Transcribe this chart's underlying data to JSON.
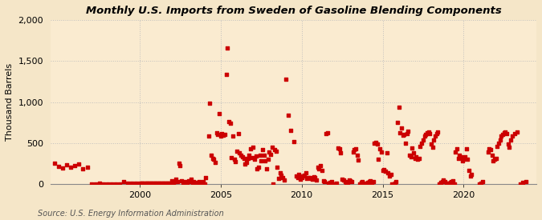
{
  "title": "Monthly U.S. Imports from Sweden of Gasoline Blending Components",
  "ylabel": "Thousand Barrels",
  "source": "Source: U.S. Energy Information Administration",
  "background_color": "#f5e6c8",
  "plot_bg_color": "#faebd0",
  "marker_color": "#cc0000",
  "grid_color": "#bbbbbb",
  "ylim": [
    0,
    2000
  ],
  "yticks": [
    0,
    500,
    1000,
    1500,
    2000
  ],
  "xlim_start": 1994.5,
  "xlim_end": 2024.5,
  "xticks": [
    2000,
    2005,
    2010,
    2015,
    2020
  ],
  "data": [
    [
      1994.75,
      250
    ],
    [
      1995.0,
      210
    ],
    [
      1995.25,
      190
    ],
    [
      1995.5,
      230
    ],
    [
      1995.75,
      200
    ],
    [
      1996.0,
      220
    ],
    [
      1996.25,
      240
    ],
    [
      1996.5,
      180
    ],
    [
      1996.75,
      200
    ],
    [
      1997.0,
      0
    ],
    [
      1997.25,
      0
    ],
    [
      1997.5,
      5
    ],
    [
      1997.75,
      0
    ],
    [
      1998.0,
      0
    ],
    [
      1998.25,
      0
    ],
    [
      1998.5,
      0
    ],
    [
      1998.75,
      0
    ],
    [
      1999.0,
      30
    ],
    [
      1999.25,
      5
    ],
    [
      1999.5,
      10
    ],
    [
      1999.75,
      5
    ],
    [
      2000.0,
      10
    ],
    [
      2000.08,
      10
    ],
    [
      2000.17,
      10
    ],
    [
      2000.25,
      10
    ],
    [
      2000.33,
      10
    ],
    [
      2000.42,
      10
    ],
    [
      2000.5,
      10
    ],
    [
      2000.58,
      10
    ],
    [
      2000.67,
      10
    ],
    [
      2000.75,
      10
    ],
    [
      2000.83,
      10
    ],
    [
      2000.92,
      10
    ],
    [
      2001.0,
      10
    ],
    [
      2001.08,
      10
    ],
    [
      2001.17,
      10
    ],
    [
      2001.25,
      10
    ],
    [
      2001.33,
      10
    ],
    [
      2001.42,
      10
    ],
    [
      2001.5,
      10
    ],
    [
      2001.58,
      10
    ],
    [
      2001.67,
      10
    ],
    [
      2001.75,
      10
    ],
    [
      2001.83,
      10
    ],
    [
      2001.92,
      10
    ],
    [
      2002.0,
      40
    ],
    [
      2002.08,
      20
    ],
    [
      2002.17,
      30
    ],
    [
      2002.25,
      60
    ],
    [
      2002.33,
      30
    ],
    [
      2002.42,
      250
    ],
    [
      2002.5,
      220
    ],
    [
      2002.58,
      40
    ],
    [
      2002.67,
      20
    ],
    [
      2002.75,
      30
    ],
    [
      2002.83,
      10
    ],
    [
      2002.92,
      20
    ],
    [
      2003.0,
      40
    ],
    [
      2003.08,
      30
    ],
    [
      2003.17,
      60
    ],
    [
      2003.25,
      20
    ],
    [
      2003.33,
      30
    ],
    [
      2003.42,
      10
    ],
    [
      2003.5,
      20
    ],
    [
      2003.58,
      0
    ],
    [
      2003.67,
      30
    ],
    [
      2003.75,
      0
    ],
    [
      2003.83,
      10
    ],
    [
      2003.92,
      30
    ],
    [
      2004.0,
      0
    ],
    [
      2004.08,
      80
    ],
    [
      2004.25,
      580
    ],
    [
      2004.33,
      990
    ],
    [
      2004.42,
      350
    ],
    [
      2004.5,
      310
    ],
    [
      2004.58,
      300
    ],
    [
      2004.67,
      260
    ],
    [
      2004.75,
      620
    ],
    [
      2004.83,
      600
    ],
    [
      2004.92,
      860
    ],
    [
      2005.0,
      580
    ],
    [
      2005.08,
      610
    ],
    [
      2005.17,
      590
    ],
    [
      2005.25,
      600
    ],
    [
      2005.33,
      1340
    ],
    [
      2005.42,
      1660
    ],
    [
      2005.5,
      760
    ],
    [
      2005.58,
      740
    ],
    [
      2005.67,
      320
    ],
    [
      2005.75,
      580
    ],
    [
      2005.83,
      300
    ],
    [
      2005.92,
      270
    ],
    [
      2006.0,
      400
    ],
    [
      2006.08,
      610
    ],
    [
      2006.17,
      380
    ],
    [
      2006.25,
      350
    ],
    [
      2006.33,
      330
    ],
    [
      2006.42,
      310
    ],
    [
      2006.5,
      240
    ],
    [
      2006.58,
      260
    ],
    [
      2006.67,
      310
    ],
    [
      2006.75,
      350
    ],
    [
      2006.83,
      430
    ],
    [
      2006.92,
      320
    ],
    [
      2007.0,
      450
    ],
    [
      2007.08,
      300
    ],
    [
      2007.17,
      340
    ],
    [
      2007.25,
      180
    ],
    [
      2007.33,
      200
    ],
    [
      2007.42,
      350
    ],
    [
      2007.5,
      280
    ],
    [
      2007.58,
      420
    ],
    [
      2007.67,
      350
    ],
    [
      2007.75,
      280
    ],
    [
      2007.83,
      180
    ],
    [
      2007.92,
      300
    ],
    [
      2008.0,
      390
    ],
    [
      2008.08,
      360
    ],
    [
      2008.17,
      450
    ],
    [
      2008.25,
      0
    ],
    [
      2008.33,
      420
    ],
    [
      2008.42,
      400
    ],
    [
      2008.5,
      200
    ],
    [
      2008.58,
      70
    ],
    [
      2008.67,
      130
    ],
    [
      2008.75,
      110
    ],
    [
      2008.83,
      80
    ],
    [
      2008.92,
      50
    ],
    [
      2009.0,
      1280
    ],
    [
      2009.17,
      840
    ],
    [
      2009.33,
      650
    ],
    [
      2009.5,
      520
    ],
    [
      2009.67,
      100
    ],
    [
      2009.75,
      80
    ],
    [
      2009.83,
      120
    ],
    [
      2009.92,
      60
    ],
    [
      2010.0,
      80
    ],
    [
      2010.08,
      100
    ],
    [
      2010.17,
      110
    ],
    [
      2010.25,
      130
    ],
    [
      2010.33,
      70
    ],
    [
      2010.42,
      80
    ],
    [
      2010.5,
      80
    ],
    [
      2010.58,
      70
    ],
    [
      2010.67,
      60
    ],
    [
      2010.75,
      90
    ],
    [
      2010.83,
      80
    ],
    [
      2010.92,
      50
    ],
    [
      2011.0,
      200
    ],
    [
      2011.08,
      180
    ],
    [
      2011.17,
      220
    ],
    [
      2011.25,
      160
    ],
    [
      2011.33,
      40
    ],
    [
      2011.42,
      30
    ],
    [
      2011.5,
      610
    ],
    [
      2011.58,
      620
    ],
    [
      2011.67,
      10
    ],
    [
      2011.75,
      20
    ],
    [
      2011.83,
      30
    ],
    [
      2011.92,
      0
    ],
    [
      2012.0,
      0
    ],
    [
      2012.08,
      0
    ],
    [
      2012.17,
      10
    ],
    [
      2012.25,
      440
    ],
    [
      2012.33,
      430
    ],
    [
      2012.42,
      380
    ],
    [
      2012.5,
      60
    ],
    [
      2012.58,
      50
    ],
    [
      2012.67,
      30
    ],
    [
      2012.75,
      20
    ],
    [
      2012.83,
      10
    ],
    [
      2012.92,
      50
    ],
    [
      2013.0,
      40
    ],
    [
      2013.08,
      30
    ],
    [
      2013.17,
      390
    ],
    [
      2013.25,
      420
    ],
    [
      2013.33,
      430
    ],
    [
      2013.42,
      350
    ],
    [
      2013.5,
      290
    ],
    [
      2013.58,
      0
    ],
    [
      2013.67,
      20
    ],
    [
      2013.75,
      30
    ],
    [
      2013.83,
      10
    ],
    [
      2013.92,
      0
    ],
    [
      2014.0,
      0
    ],
    [
      2014.08,
      20
    ],
    [
      2014.17,
      30
    ],
    [
      2014.25,
      40
    ],
    [
      2014.33,
      0
    ],
    [
      2014.42,
      30
    ],
    [
      2014.5,
      500
    ],
    [
      2014.58,
      510
    ],
    [
      2014.67,
      490
    ],
    [
      2014.75,
      300
    ],
    [
      2014.83,
      430
    ],
    [
      2014.92,
      390
    ],
    [
      2015.0,
      160
    ],
    [
      2015.08,
      170
    ],
    [
      2015.17,
      150
    ],
    [
      2015.25,
      380
    ],
    [
      2015.33,
      130
    ],
    [
      2015.42,
      100
    ],
    [
      2015.5,
      120
    ],
    [
      2015.58,
      0
    ],
    [
      2015.67,
      0
    ],
    [
      2015.75,
      10
    ],
    [
      2015.83,
      30
    ],
    [
      2015.92,
      750
    ],
    [
      2016.0,
      940
    ],
    [
      2016.08,
      620
    ],
    [
      2016.17,
      680
    ],
    [
      2016.25,
      590
    ],
    [
      2016.33,
      600
    ],
    [
      2016.42,
      500
    ],
    [
      2016.5,
      610
    ],
    [
      2016.58,
      640
    ],
    [
      2016.67,
      350
    ],
    [
      2016.75,
      330
    ],
    [
      2016.83,
      440
    ],
    [
      2016.92,
      380
    ],
    [
      2017.0,
      310
    ],
    [
      2017.08,
      330
    ],
    [
      2017.17,
      300
    ],
    [
      2017.25,
      310
    ],
    [
      2017.33,
      460
    ],
    [
      2017.42,
      500
    ],
    [
      2017.5,
      540
    ],
    [
      2017.58,
      580
    ],
    [
      2017.67,
      600
    ],
    [
      2017.75,
      620
    ],
    [
      2017.83,
      630
    ],
    [
      2017.92,
      610
    ],
    [
      2018.0,
      490
    ],
    [
      2018.08,
      450
    ],
    [
      2018.17,
      540
    ],
    [
      2018.25,
      580
    ],
    [
      2018.33,
      610
    ],
    [
      2018.42,
      630
    ],
    [
      2018.5,
      0
    ],
    [
      2018.58,
      20
    ],
    [
      2018.67,
      30
    ],
    [
      2018.75,
      50
    ],
    [
      2018.83,
      30
    ],
    [
      2018.92,
      10
    ],
    [
      2019.0,
      0
    ],
    [
      2019.08,
      10
    ],
    [
      2019.17,
      20
    ],
    [
      2019.25,
      30
    ],
    [
      2019.33,
      40
    ],
    [
      2019.42,
      0
    ],
    [
      2019.5,
      390
    ],
    [
      2019.58,
      430
    ],
    [
      2019.67,
      310
    ],
    [
      2019.75,
      350
    ],
    [
      2019.83,
      330
    ],
    [
      2019.92,
      280
    ],
    [
      2020.0,
      300
    ],
    [
      2020.08,
      330
    ],
    [
      2020.17,
      430
    ],
    [
      2020.25,
      300
    ],
    [
      2020.33,
      160
    ],
    [
      2020.42,
      100
    ],
    [
      2020.5,
      120
    ],
    [
      2021.0,
      0
    ],
    [
      2021.08,
      10
    ],
    [
      2021.17,
      30
    ],
    [
      2021.5,
      390
    ],
    [
      2021.58,
      430
    ],
    [
      2021.67,
      420
    ],
    [
      2021.75,
      350
    ],
    [
      2021.83,
      280
    ],
    [
      2021.92,
      300
    ],
    [
      2022.0,
      310
    ],
    [
      2022.08,
      460
    ],
    [
      2022.17,
      500
    ],
    [
      2022.25,
      540
    ],
    [
      2022.33,
      580
    ],
    [
      2022.42,
      600
    ],
    [
      2022.5,
      620
    ],
    [
      2022.58,
      630
    ],
    [
      2022.67,
      610
    ],
    [
      2022.75,
      490
    ],
    [
      2022.83,
      450
    ],
    [
      2022.92,
      540
    ],
    [
      2023.0,
      580
    ],
    [
      2023.17,
      610
    ],
    [
      2023.33,
      630
    ],
    [
      2023.5,
      0
    ],
    [
      2023.67,
      20
    ],
    [
      2023.83,
      30
    ]
  ]
}
